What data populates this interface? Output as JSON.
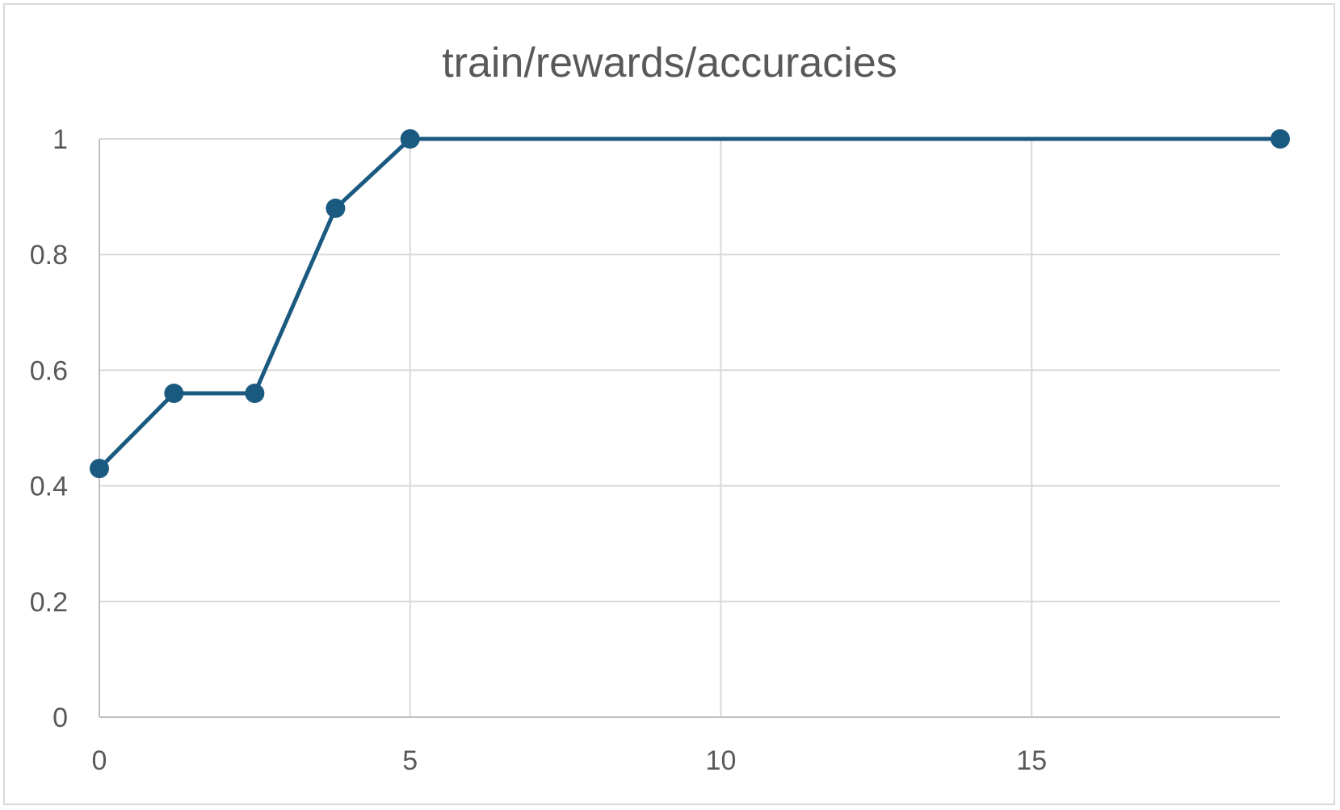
{
  "chart_data": {
    "type": "line",
    "title": "train/rewards/accuracies",
    "xlabel": "",
    "ylabel": "",
    "xlim": [
      0,
      19
    ],
    "ylim": [
      0,
      1
    ],
    "x_ticks": [
      "0",
      "5",
      "10",
      "15"
    ],
    "x_tick_values": [
      0,
      5,
      10,
      15
    ],
    "y_ticks": [
      "0",
      "0.2",
      "0.4",
      "0.6",
      "0.8",
      "1"
    ],
    "y_tick_values": [
      0,
      0.2,
      0.4,
      0.6,
      0.8,
      1
    ],
    "grid": true,
    "legend": "none",
    "series": [
      {
        "color": "#1b5a80",
        "x": [
          0,
          1.2,
          2.5,
          3.8,
          5,
          19
        ],
        "y": [
          0.43,
          0.56,
          0.56,
          0.88,
          1.0,
          1.0
        ]
      }
    ]
  }
}
